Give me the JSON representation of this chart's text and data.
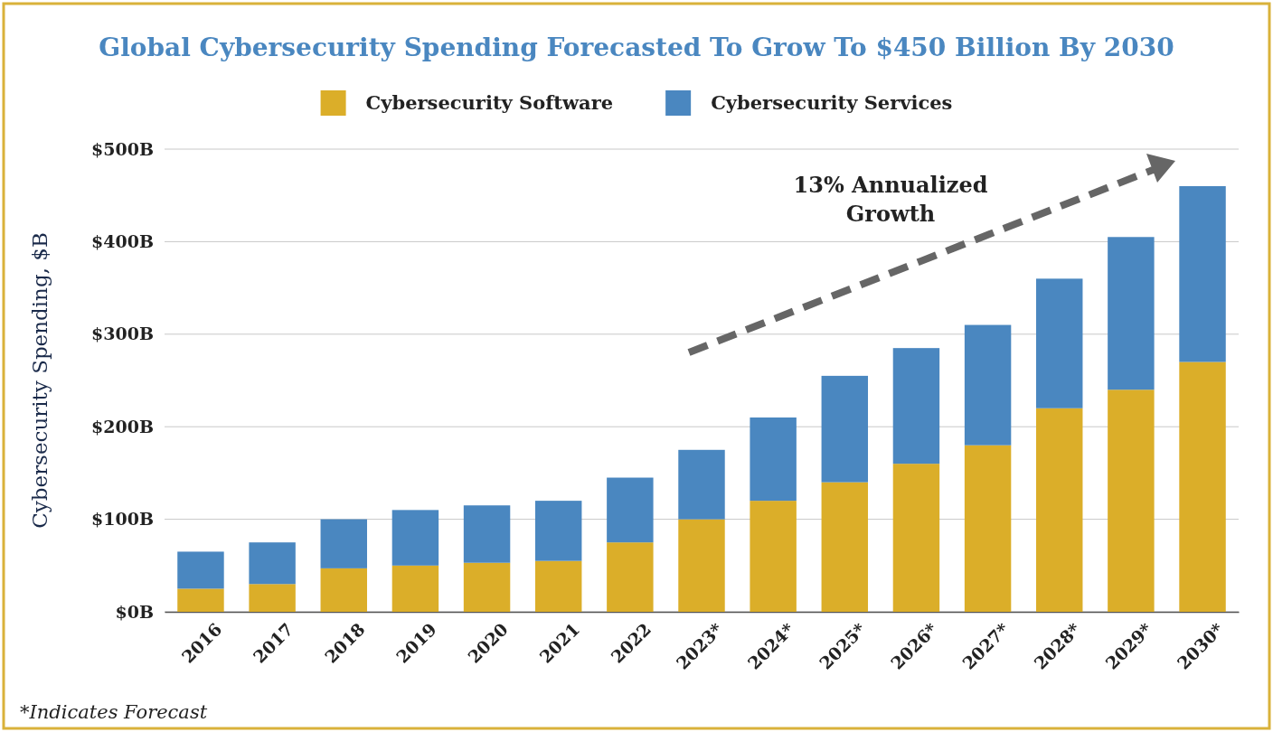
{
  "chart_data": {
    "type": "bar",
    "title": "Global Cybersecurity Spending Forecasted To Grow To $450 Billion By 2030",
    "ylabel": "Cybersecurity Spending, $B",
    "categories": [
      "2016",
      "2017",
      "2018",
      "2019",
      "2020",
      "2021",
      "2022",
      "2023*",
      "2024*",
      "2025*",
      "2026*",
      "2027*",
      "2028*",
      "2029*",
      "2030*"
    ],
    "stacked": true,
    "series": [
      {
        "name": "Cybersecurity Software",
        "color": "#dbae29",
        "values": [
          25,
          30,
          47,
          50,
          53,
          55,
          75,
          100,
          120,
          140,
          160,
          180,
          220,
          240,
          270
        ]
      },
      {
        "name": "Cybersecurity Services",
        "color": "#4a87c0",
        "values": [
          40,
          45,
          53,
          60,
          62,
          65,
          70,
          75,
          90,
          115,
          125,
          130,
          140,
          165,
          190
        ]
      }
    ],
    "ylim": [
      0,
      500
    ],
    "yticks": [
      {
        "value": 0,
        "label": "$0B"
      },
      {
        "value": 100,
        "label": "$100B"
      },
      {
        "value": 200,
        "label": "$200B"
      },
      {
        "value": 300,
        "label": "$300B"
      },
      {
        "value": 400,
        "label": "$400B"
      },
      {
        "value": 500,
        "label": "$500B"
      }
    ],
    "grid": "y",
    "legend": "top",
    "annotations": [
      "13% Annualized\nGrowth",
      "*Indicates Forecast"
    ]
  }
}
